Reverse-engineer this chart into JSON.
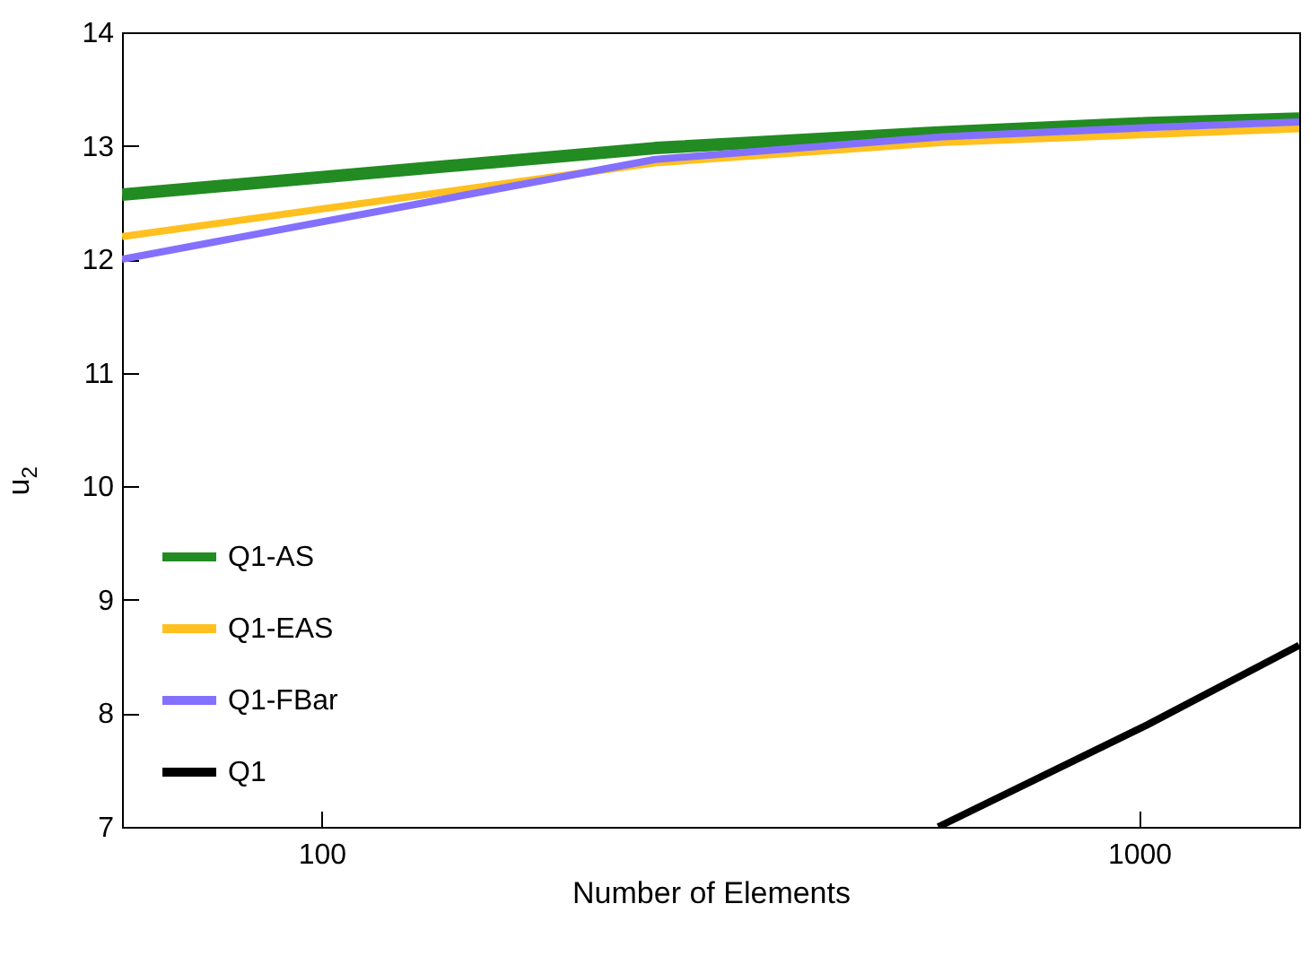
{
  "chart_data": {
    "type": "line",
    "xlabel": "Number of Elements",
    "ylabel": "u$_{2}$",
    "log": "x",
    "xlim": [
      57,
      1570
    ],
    "ylim": [
      7,
      14
    ],
    "xticks": [
      100,
      1000
    ],
    "yticks": [
      7,
      8,
      9,
      10,
      11,
      12,
      13,
      14
    ],
    "legend": "bottom left",
    "line_style": "solid",
    "marker": "none",
    "grid": false,
    "series": [
      {
        "name": "Q1-AS",
        "color": "#228b22",
        "x": [
          57,
          256,
          576,
          1024,
          1570
        ],
        "values": [
          12.57,
          12.98,
          13.12,
          13.2,
          13.24
        ]
      },
      {
        "name": "Q1-EAS",
        "color": "#ffc020",
        "x": [
          57,
          256,
          576,
          1024,
          1570
        ],
        "values": [
          12.2,
          12.85,
          13.03,
          13.1,
          13.15
        ]
      },
      {
        "name": "Q1-FBar",
        "color": "#8470ff",
        "x": [
          57,
          256,
          576,
          1024,
          1570
        ],
        "values": [
          12.0,
          12.88,
          13.08,
          13.16,
          13.21
        ]
      },
      {
        "name": "Q1",
        "color": "#000000",
        "x": [
          568,
          1024,
          1570
        ],
        "values": [
          7.0,
          7.9,
          8.6
        ]
      }
    ]
  }
}
